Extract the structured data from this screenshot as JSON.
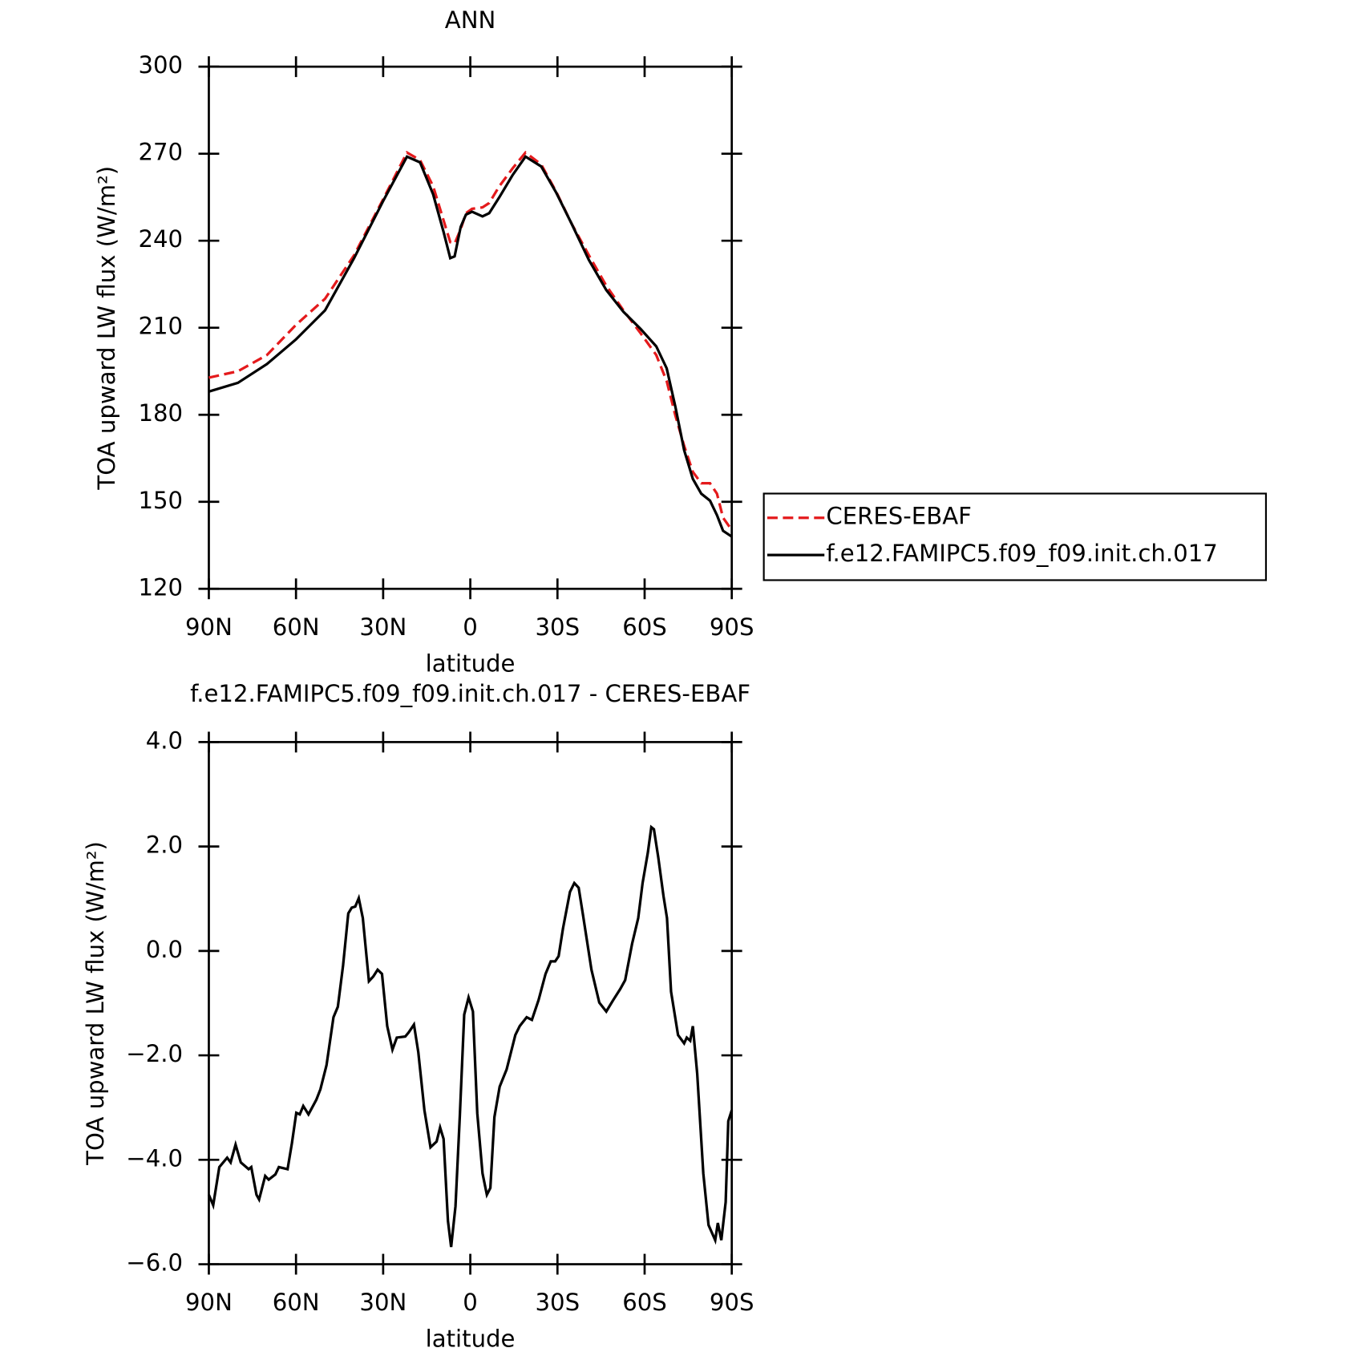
{
  "chart_data": [
    {
      "type": "line",
      "title": "ANN",
      "xlabel": "latitude",
      "ylabel": "TOA upward LW flux (W/m²)",
      "x": [
        90,
        80,
        70,
        60,
        50,
        40,
        30,
        21.8,
        17.3,
        12.8,
        9.2,
        6.9,
        5.4,
        3.3,
        1.5,
        -0.6,
        -4.2,
        -6.5,
        -10,
        -14.6,
        -19,
        -24.4,
        -29.5,
        -34.8,
        -40.8,
        -46.8,
        -52.7,
        -58.7,
        -64,
        -67.6,
        -70.6,
        -73.6,
        -76.6,
        -79.5,
        -82.5,
        -84.9,
        -87,
        -90
      ],
      "series": [
        {
          "name": "CERES-EBAF",
          "color": "#e41a1c",
          "line_style": "dashed",
          "values": [
            192.8,
            195,
            200.6,
            211,
            220,
            235,
            254.3,
            270.4,
            267.8,
            258.8,
            247,
            239.5,
            239,
            244,
            249.5,
            251,
            251.5,
            253,
            258.8,
            265,
            270.4,
            266.3,
            257,
            246,
            235,
            224.5,
            216,
            208,
            200.6,
            191.6,
            179.7,
            169.3,
            160.3,
            156.4,
            156.4,
            152.8,
            144.5,
            140.3
          ]
        },
        {
          "name": "f.e12.FAMIPC5.f09_f09.init.ch.017",
          "color": "#000000",
          "line_style": "solid",
          "values": [
            188,
            191,
            197.5,
            206,
            216,
            234,
            253.7,
            269,
            267,
            256,
            243,
            234,
            234.6,
            244.8,
            249,
            250,
            248.4,
            249.5,
            255,
            262.7,
            269,
            265.6,
            256.7,
            246,
            233.4,
            223,
            215.5,
            209.5,
            203.6,
            196,
            182.7,
            167.8,
            157.9,
            152.8,
            150.4,
            145.4,
            140,
            138
          ]
        }
      ],
      "xlim": [
        90,
        -90
      ],
      "xticks": [
        {
          "value": 90,
          "label": "90N"
        },
        {
          "value": 60,
          "label": "60N"
        },
        {
          "value": 30,
          "label": "30N"
        },
        0,
        {
          "value": -30,
          "label": "30S"
        },
        {
          "value": -60,
          "label": "60S"
        },
        {
          "value": -90,
          "label": "90S"
        }
      ],
      "ylim": [
        120,
        300
      ],
      "yticks": [
        120,
        150,
        180,
        210,
        240,
        270,
        300
      ],
      "legend": "right"
    },
    {
      "type": "line",
      "title": "f.e12.FAMIPC5.f09_f09.init.ch.017 - CERES-EBAF",
      "xlabel": "latitude",
      "ylabel": "TOA upward LW flux (W/m²)",
      "x": [
        90,
        88.5,
        86.4,
        83.7,
        82.5,
        80.8,
        79.0,
        76.3,
        75.4,
        73.6,
        72.7,
        70.6,
        69.4,
        67.1,
        65.9,
        62.9,
        61.4,
        59.9,
        58.7,
        57.5,
        55.7,
        53.0,
        51.6,
        49.5,
        47.1,
        45.6,
        43.8,
        42.0,
        40.8,
        39.6,
        38.4,
        37.0,
        34.9,
        33.4,
        31.9,
        30.4,
        28.6,
        26.8,
        25.3,
        22.4,
        21.2,
        19.4,
        17.9,
        15.8,
        13.7,
        11.6,
        10.4,
        9.2,
        7.7,
        6.6,
        5.1,
        3.6,
        2.1,
        0.6,
        -0.9,
        -2.4,
        -4.2,
        -5.7,
        -6.9,
        -8.3,
        -10.1,
        -12.5,
        -15.5,
        -17.0,
        -19.4,
        -21.2,
        -23.5,
        -25.9,
        -27.7,
        -29.2,
        -30.4,
        -31.9,
        -34.3,
        -35.8,
        -37.3,
        -38.7,
        -41.7,
        -44.4,
        -46.8,
        -49.2,
        -51.6,
        -53.3,
        -55.7,
        -57.8,
        -59.3,
        -61.1,
        -62.3,
        -63.2,
        -64.7,
        -66.5,
        -67.7,
        -69.1,
        -71.5,
        -73.6,
        -74.5,
        -75.7,
        -76.6,
        -78.1,
        -80.2,
        -82.0,
        -84.3,
        -85.2,
        -86.4,
        -87.9,
        -88.8,
        -90
      ],
      "series": [
        {
          "name": "f.e12.FAMIPC5.f09_f09.init.ch.017 - CERES-EBAF",
          "color": "#000000",
          "line_style": "solid",
          "values": [
            -4.67,
            -4.87,
            -4.14,
            -3.96,
            -4.05,
            -3.71,
            -4.05,
            -4.18,
            -4.14,
            -4.67,
            -4.76,
            -4.31,
            -4.38,
            -4.28,
            -4.14,
            -4.18,
            -3.68,
            -3.1,
            -3.13,
            -2.97,
            -3.13,
            -2.85,
            -2.65,
            -2.19,
            -1.27,
            -1.07,
            -0.28,
            0.72,
            0.83,
            0.85,
            1.01,
            0.63,
            -0.58,
            -0.49,
            -0.36,
            -0.44,
            -1.44,
            -1.89,
            -1.66,
            -1.64,
            -1.56,
            -1.41,
            -1.94,
            -3.05,
            -3.76,
            -3.65,
            -3.38,
            -3.6,
            -5.17,
            -5.67,
            -4.89,
            -3.15,
            -1.22,
            -0.89,
            -1.16,
            -3.11,
            -4.26,
            -4.67,
            -4.54,
            -3.18,
            -2.6,
            -2.27,
            -1.61,
            -1.44,
            -1.27,
            -1.32,
            -0.94,
            -0.44,
            -0.2,
            -0.2,
            -0.1,
            0.43,
            1.13,
            1.3,
            1.21,
            0.72,
            -0.36,
            -0.99,
            -1.16,
            -0.94,
            -0.73,
            -0.56,
            0.14,
            0.63,
            1.3,
            1.88,
            2.37,
            2.33,
            1.79,
            1.05,
            0.63,
            -0.78,
            -1.61,
            -1.77,
            -1.66,
            -1.72,
            -1.44,
            -2.35,
            -4.26,
            -5.25,
            -5.54,
            -5.21,
            -5.54,
            -4.81,
            -3.26,
            -3.05
          ]
        }
      ],
      "xlim": [
        90,
        -90
      ],
      "xticks": [
        {
          "value": 90,
          "label": "90N"
        },
        {
          "value": 60,
          "label": "60N"
        },
        {
          "value": 30,
          "label": "30N"
        },
        0,
        {
          "value": -30,
          "label": "30S"
        },
        {
          "value": -60,
          "label": "60S"
        },
        {
          "value": -90,
          "label": "90S"
        }
      ],
      "ylim": [
        -6,
        4
      ],
      "yticks": [
        {
          "value": -6,
          "label": "−6.0"
        },
        {
          "value": -4,
          "label": "−4.0"
        },
        {
          "value": -2,
          "label": "−2.0"
        },
        {
          "value": 0,
          "label": "0.0"
        },
        {
          "value": 2,
          "label": "2.0"
        },
        {
          "value": 4,
          "label": "4.0"
        }
      ]
    }
  ]
}
